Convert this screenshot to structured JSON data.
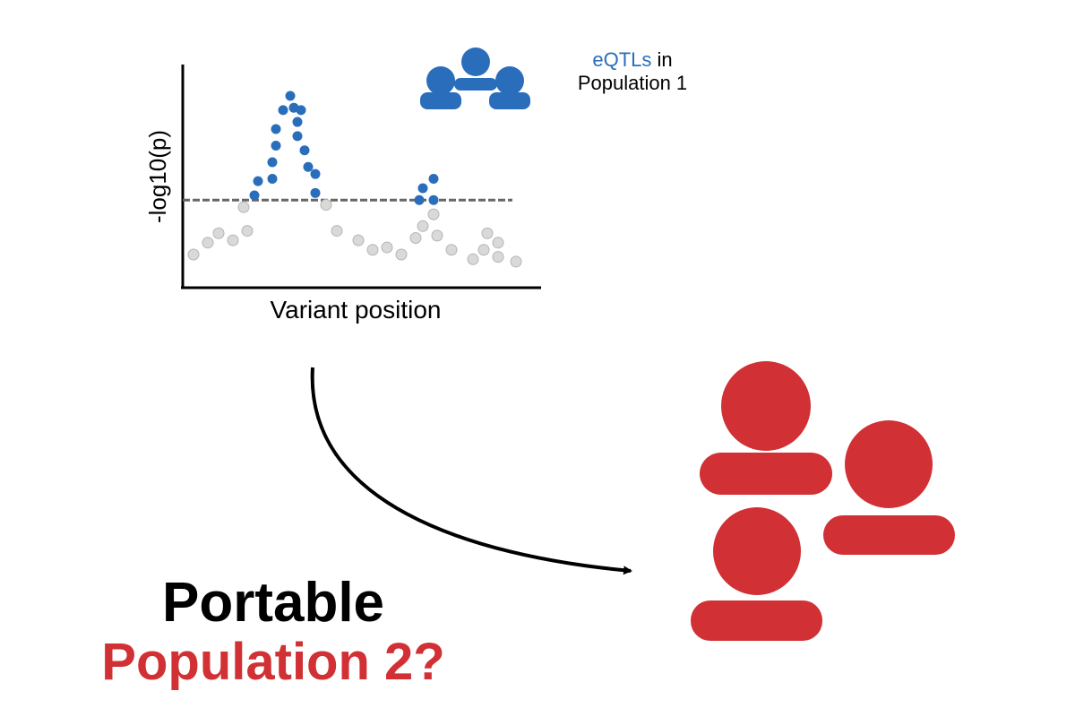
{
  "chart_data": {
    "type": "scatter",
    "xlabel": "Variant position",
    "ylabel": "-log10(p)",
    "significance_threshold": 3.7,
    "xlim": [
      0,
      100
    ],
    "ylim": [
      0,
      9.5
    ],
    "series": [
      {
        "role": "significant",
        "color": "#2a6ebb",
        "points": [
          [
            20,
            3.9
          ],
          [
            21,
            4.5
          ],
          [
            25,
            4.6
          ],
          [
            25,
            5.3
          ],
          [
            26,
            6.0
          ],
          [
            26,
            6.7
          ],
          [
            28,
            7.5
          ],
          [
            30,
            8.1
          ],
          [
            31,
            7.6
          ],
          [
            32,
            7.0
          ],
          [
            32,
            6.4
          ],
          [
            33,
            7.5
          ],
          [
            34,
            5.8
          ],
          [
            35,
            5.1
          ],
          [
            37,
            4.0
          ],
          [
            37,
            4.8
          ],
          [
            66,
            3.7
          ],
          [
            67,
            4.2
          ],
          [
            70,
            3.7
          ],
          [
            70,
            4.6
          ]
        ]
      },
      {
        "role": "non-significant",
        "color": "#d9d9d9",
        "points": [
          [
            3,
            1.4
          ],
          [
            7,
            1.9
          ],
          [
            10,
            2.3
          ],
          [
            14,
            2.0
          ],
          [
            17,
            3.4
          ],
          [
            18,
            2.4
          ],
          [
            40,
            3.5
          ],
          [
            43,
            2.4
          ],
          [
            49,
            2.0
          ],
          [
            53,
            1.6
          ],
          [
            57,
            1.7
          ],
          [
            61,
            1.4
          ],
          [
            65,
            2.1
          ],
          [
            67,
            2.6
          ],
          [
            70,
            3.1
          ],
          [
            71,
            2.2
          ],
          [
            75,
            1.6
          ],
          [
            81,
            1.2
          ],
          [
            84,
            1.6
          ],
          [
            85,
            2.3
          ],
          [
            88,
            1.3
          ],
          [
            88,
            1.9
          ],
          [
            93,
            1.1
          ]
        ]
      }
    ]
  },
  "legend": {
    "eqtl_word": "eQTLs",
    "in_word": " in",
    "population_1": "Population 1"
  },
  "labels": {
    "portable": "Portable",
    "population_2": "Population 2?"
  },
  "colors": {
    "population_1": "#2a6ebb",
    "population_2": "#d13034",
    "non_significant": "#d9d9d9",
    "threshold": "#666666"
  },
  "icons": {
    "group_1": "people-group-icon",
    "group_2": "people-group-icon",
    "arrow": "curved-arrow-icon"
  }
}
